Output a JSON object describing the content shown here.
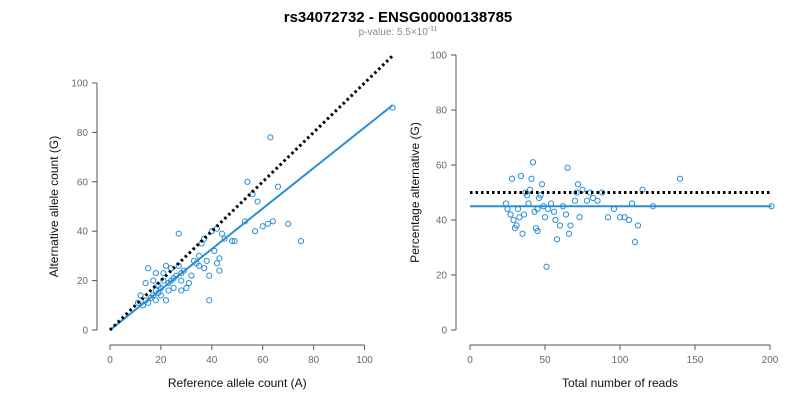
{
  "title": "rs34072732 - ENSG00000138785",
  "subtitle": {
    "prefix": "p-value: 5.5×10",
    "exponent": "-11"
  },
  "colors": {
    "points": "#2b8fd6",
    "fit_line": "#2b8fd6",
    "reference_line": "#000000",
    "axes": "#555555",
    "ticks_text": "#6a6a6a"
  },
  "chart_data": [
    {
      "type": "scatter",
      "xlabel": "Reference allele count (A)",
      "ylabel": "Alternative allele count (G)",
      "xlim": [
        0,
        110
      ],
      "ylim": [
        0,
        100
      ],
      "xticks": [
        0,
        20,
        40,
        60,
        80,
        100
      ],
      "yticks": [
        0,
        20,
        40,
        60,
        80,
        100
      ],
      "grid": false,
      "points": [
        [
          11,
          11
        ],
        [
          12,
          14
        ],
        [
          13,
          10
        ],
        [
          14,
          12
        ],
        [
          14,
          19
        ],
        [
          15,
          11
        ],
        [
          15,
          25
        ],
        [
          16,
          13
        ],
        [
          17,
          14
        ],
        [
          17,
          20
        ],
        [
          18,
          16
        ],
        [
          18,
          12
        ],
        [
          18,
          23
        ],
        [
          19,
          15
        ],
        [
          19,
          18
        ],
        [
          20,
          14
        ],
        [
          20,
          17
        ],
        [
          21,
          20
        ],
        [
          21,
          23
        ],
        [
          22,
          12
        ],
        [
          22,
          26
        ],
        [
          23,
          19
        ],
        [
          23,
          16
        ],
        [
          24,
          20
        ],
        [
          24,
          25
        ],
        [
          25,
          21
        ],
        [
          25,
          17
        ],
        [
          26,
          22
        ],
        [
          27,
          26
        ],
        [
          27,
          39
        ],
        [
          28,
          20
        ],
        [
          28,
          23
        ],
        [
          28,
          16
        ],
        [
          29,
          24
        ],
        [
          30,
          17
        ],
        [
          31,
          19
        ],
        [
          32,
          22
        ],
        [
          33,
          28
        ],
        [
          34,
          27
        ],
        [
          35,
          26
        ],
        [
          35,
          30
        ],
        [
          36,
          35
        ],
        [
          37,
          37
        ],
        [
          37,
          25
        ],
        [
          38,
          28
        ],
        [
          39,
          12
        ],
        [
          39,
          22
        ],
        [
          40,
          40
        ],
        [
          41,
          32
        ],
        [
          42,
          41
        ],
        [
          42,
          27
        ],
        [
          43,
          29
        ],
        [
          43,
          24
        ],
        [
          44,
          39
        ],
        [
          45,
          37
        ],
        [
          48,
          36
        ],
        [
          49,
          36
        ],
        [
          53,
          44
        ],
        [
          54,
          60
        ],
        [
          56,
          55
        ],
        [
          57,
          40
        ],
        [
          58,
          52
        ],
        [
          60,
          42
        ],
        [
          62,
          43
        ],
        [
          63,
          78
        ],
        [
          64,
          44
        ],
        [
          66,
          58
        ],
        [
          70,
          43
        ],
        [
          75,
          36
        ],
        [
          111,
          90
        ]
      ],
      "fit_line": {
        "from": [
          0,
          0
        ],
        "to": [
          111,
          91
        ]
      },
      "reference_line": {
        "from": [
          0,
          0
        ],
        "to": [
          111,
          111
        ]
      }
    },
    {
      "type": "scatter",
      "xlabel": "Total number of reads",
      "ylabel": "Percentage alternative (G)",
      "xlim": [
        0,
        200
      ],
      "ylim": [
        0,
        100
      ],
      "xticks": [
        0,
        50,
        100,
        150,
        200
      ],
      "yticks": [
        0,
        20,
        40,
        60,
        80,
        100
      ],
      "grid": false,
      "points": [
        [
          24,
          46
        ],
        [
          25,
          44
        ],
        [
          27,
          42
        ],
        [
          28,
          55
        ],
        [
          29,
          40
        ],
        [
          30,
          37
        ],
        [
          31,
          38
        ],
        [
          32,
          44
        ],
        [
          33,
          41
        ],
        [
          34,
          56
        ],
        [
          35,
          35
        ],
        [
          36,
          42
        ],
        [
          37,
          50
        ],
        [
          38,
          49
        ],
        [
          39,
          46
        ],
        [
          40,
          51
        ],
        [
          41,
          55
        ],
        [
          42,
          61
        ],
        [
          43,
          43
        ],
        [
          44,
          37
        ],
        [
          45,
          44
        ],
        [
          45,
          36
        ],
        [
          46,
          48
        ],
        [
          47,
          49
        ],
        [
          48,
          53
        ],
        [
          49,
          45
        ],
        [
          50,
          41
        ],
        [
          51,
          23
        ],
        [
          52,
          44
        ],
        [
          54,
          46
        ],
        [
          56,
          43
        ],
        [
          57,
          40
        ],
        [
          58,
          33
        ],
        [
          60,
          38
        ],
        [
          62,
          45
        ],
        [
          64,
          42
        ],
        [
          65,
          59
        ],
        [
          66,
          35
        ],
        [
          67,
          38
        ],
        [
          70,
          47
        ],
        [
          71,
          50
        ],
        [
          72,
          53
        ],
        [
          73,
          41
        ],
        [
          75,
          51
        ],
        [
          78,
          47
        ],
        [
          80,
          50
        ],
        [
          82,
          48
        ],
        [
          85,
          47
        ],
        [
          88,
          50
        ],
        [
          92,
          41
        ],
        [
          96,
          44
        ],
        [
          100,
          41
        ],
        [
          103,
          41
        ],
        [
          106,
          40
        ],
        [
          108,
          46
        ],
        [
          110,
          32
        ],
        [
          112,
          38
        ],
        [
          115,
          51
        ],
        [
          122,
          45
        ],
        [
          140,
          55
        ],
        [
          201,
          45
        ]
      ],
      "fit_line": {
        "from": [
          0,
          45
        ],
        "to": [
          201,
          45
        ]
      },
      "reference_line": {
        "from": [
          0,
          50
        ],
        "to": [
          201,
          50
        ]
      }
    }
  ]
}
